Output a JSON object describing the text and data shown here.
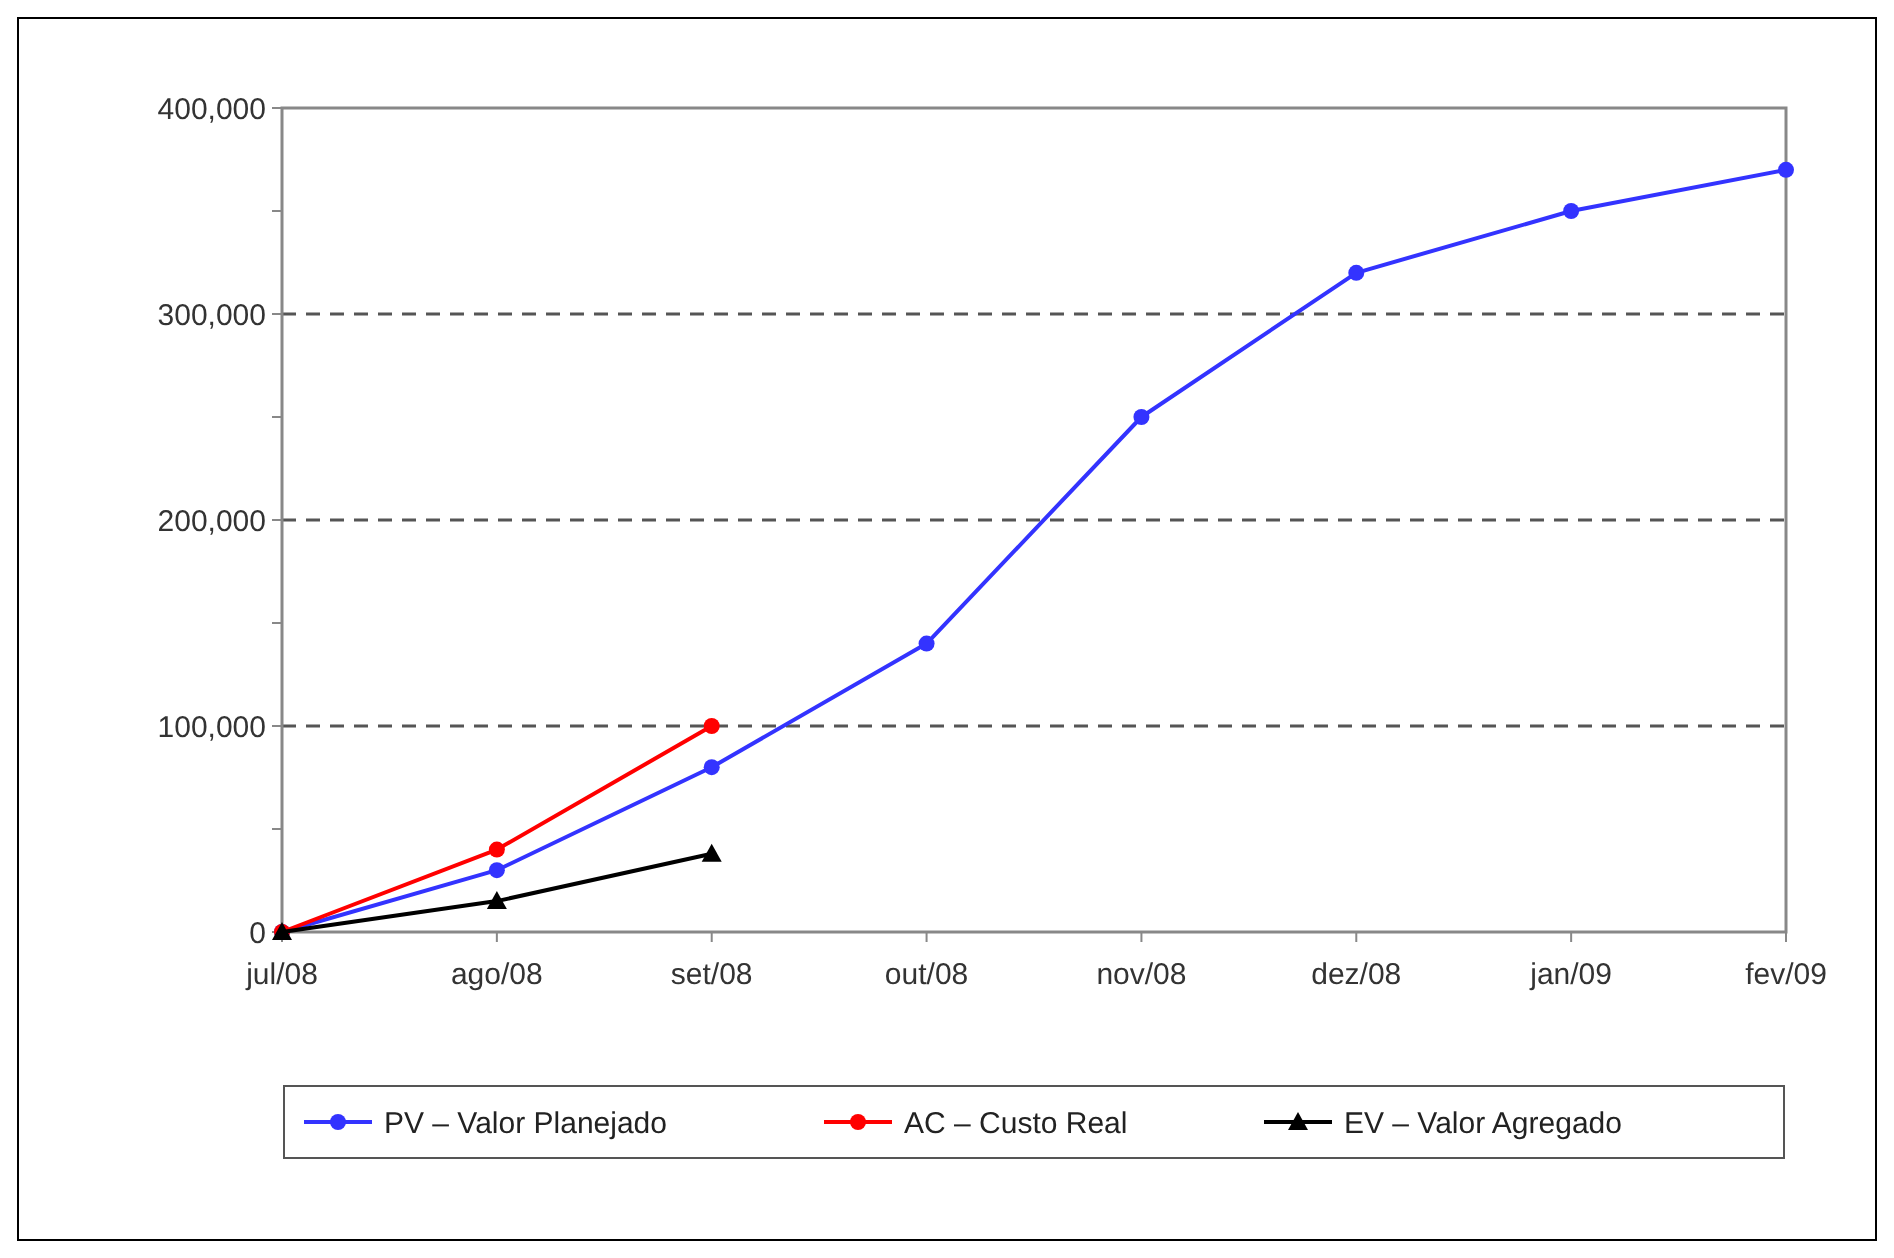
{
  "chart_data": {
    "type": "line",
    "categories": [
      "jul/08",
      "ago/08",
      "set/08",
      "out/08",
      "nov/08",
      "dez/08",
      "jan/09",
      "fev/09"
    ],
    "series": [
      {
        "name": "PV – Valor Planejado",
        "color": "#3333ff",
        "marker": "circle",
        "values": [
          0,
          30000,
          80000,
          140000,
          250000,
          320000,
          350000,
          370000
        ]
      },
      {
        "name": "AC – Custo Real",
        "color": "#ff0000",
        "marker": "circle",
        "values": [
          0,
          40000,
          100000,
          null,
          null,
          null,
          null,
          null
        ]
      },
      {
        "name": "EV – Valor Agregado",
        "color": "#000000",
        "marker": "triangle",
        "values": [
          0,
          15000,
          38000,
          null,
          null,
          null,
          null,
          null
        ]
      }
    ],
    "ylim": [
      0,
      400000
    ],
    "yticks": [
      0,
      {
        "value": 50000,
        "label": null
      },
      {
        "value": 100000,
        "label": "100,000"
      },
      {
        "value": 150000,
        "label": null
      },
      {
        "value": 200000,
        "label": "200,000"
      },
      {
        "value": 250000,
        "label": null
      },
      {
        "value": 300000,
        "label": "300,000"
      },
      {
        "value": 350000,
        "label": null
      },
      {
        "value": 400000,
        "label": "400,000"
      }
    ],
    "grid": "y",
    "legend": "bottom",
    "line_style": "solid"
  }
}
